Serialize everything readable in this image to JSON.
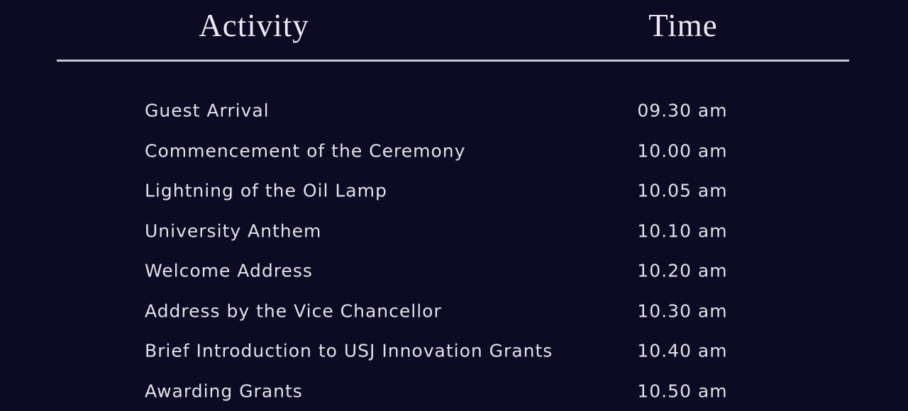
{
  "colors": {
    "background": "#0d0a23",
    "header_text": "#ece9f4",
    "row_text": "#e2e0ea",
    "divider": "#c8c7d2"
  },
  "table": {
    "headers": {
      "activity": "Activity",
      "time": "Time"
    },
    "rows": [
      {
        "activity": "Guest Arrival",
        "time": "09.30 am"
      },
      {
        "activity": "Commencement of the Ceremony",
        "time": "10.00 am"
      },
      {
        "activity": "Lightning of the Oil Lamp",
        "time": "10.05 am"
      },
      {
        "activity": "University Anthem",
        "time": "10.10 am"
      },
      {
        "activity": "Welcome Address",
        "time": "10.20 am"
      },
      {
        "activity": "Address by the Vice Chancellor",
        "time": "10.30 am"
      },
      {
        "activity": "Brief Introduction to USJ Innovation Grants",
        "time": "10.40 am"
      },
      {
        "activity": "Awarding Grants",
        "time": "10.50 am"
      }
    ]
  }
}
